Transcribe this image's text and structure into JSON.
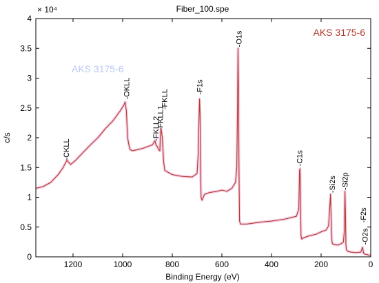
{
  "chart_data": {
    "type": "line",
    "title": "Fiber_100.spe",
    "xlabel": "Binding Energy (eV)",
    "ylabel": "c/s",
    "y_multiplier_label": "× 10⁴",
    "xlim": [
      1350,
      0
    ],
    "ylim": [
      0,
      4
    ],
    "x_ticks": [
      1200,
      1000,
      800,
      600,
      400,
      200,
      0
    ],
    "y_ticks": [
      0,
      0.5,
      1,
      1.5,
      2,
      2.5,
      3,
      3.5,
      4
    ],
    "x_tick_labels": [
      "1200",
      "1000",
      "800",
      "600",
      "400",
      "200",
      "0"
    ],
    "y_tick_labels": [
      "0",
      "0.5",
      "1",
      "1.5",
      "2",
      "2.5",
      "3",
      "3.5",
      "4"
    ],
    "grid": false,
    "legend_position": "top-right",
    "series": [
      {
        "name": "AKS 3175-6",
        "color": "#b03a2e",
        "x": [
          1350,
          1320,
          1290,
          1260,
          1240,
          1230,
          1225,
          1220,
          1210,
          1190,
          1160,
          1130,
          1100,
          1070,
          1040,
          1010,
          995,
          990,
          985,
          980,
          975,
          970,
          960,
          940,
          920,
          900,
          880,
          870,
          865,
          860,
          855,
          850,
          848,
          845,
          840,
          835,
          830,
          800,
          760,
          720,
          700,
          695,
          692,
          690,
          688,
          686,
          684,
          680,
          670,
          650,
          620,
          600,
          580,
          560,
          545,
          540,
          537,
          535,
          533,
          531,
          529,
          525,
          520,
          500,
          450,
          400,
          350,
          300,
          290,
          287,
          285,
          283,
          281,
          278,
          270,
          250,
          220,
          200,
          180,
          170,
          165,
          162,
          160,
          158,
          156,
          154,
          150,
          140,
          130,
          120,
          110,
          106,
          104,
          102,
          100,
          98,
          95,
          90,
          80,
          60,
          40,
          33,
          31,
          29,
          25,
          20,
          15,
          10,
          5,
          0
        ],
        "values": [
          1.15,
          1.18,
          1.25,
          1.38,
          1.5,
          1.58,
          1.62,
          1.6,
          1.55,
          1.62,
          1.75,
          1.88,
          2.0,
          2.15,
          2.28,
          2.45,
          2.55,
          2.6,
          2.45,
          2.0,
          1.88,
          1.8,
          1.78,
          1.8,
          1.82,
          1.85,
          1.88,
          1.95,
          1.87,
          1.85,
          1.8,
          1.78,
          2.05,
          2.15,
          2.0,
          1.6,
          1.45,
          1.38,
          1.35,
          1.34,
          1.4,
          1.75,
          2.4,
          2.65,
          2.4,
          1.5,
          1.0,
          0.95,
          1.05,
          1.08,
          1.1,
          1.12,
          1.1,
          1.15,
          1.25,
          1.5,
          2.5,
          3.5,
          2.8,
          1.5,
          0.6,
          0.55,
          0.55,
          0.55,
          0.58,
          0.6,
          0.63,
          0.68,
          0.8,
          1.45,
          1.48,
          0.9,
          0.35,
          0.3,
          0.32,
          0.35,
          0.38,
          0.42,
          0.45,
          0.52,
          0.85,
          1.05,
          0.7,
          0.4,
          0.25,
          0.22,
          0.21,
          0.2,
          0.2,
          0.22,
          0.25,
          0.45,
          1.1,
          0.75,
          0.2,
          0.12,
          0.1,
          0.09,
          0.08,
          0.07,
          0.08,
          0.16,
          0.12,
          0.06,
          0.05,
          0.04,
          0.04,
          0.03,
          0.03,
          0.03
        ]
      }
    ],
    "annotations": [
      {
        "text": "-CKLL",
        "x": 1228,
        "y": 1.6
      },
      {
        "text": "-OKLL",
        "x": 985,
        "y": 2.62
      },
      {
        "text": "-FKLL2",
        "x": 866,
        "y": 1.92
      },
      {
        "text": "-FKLL1",
        "x": 848,
        "y": 2.1
      },
      {
        "text": "-FKLL",
        "x": 832,
        "y": 2.45
      },
      {
        "text": "-F1s",
        "x": 690,
        "y": 2.7
      },
      {
        "text": "-O1s",
        "x": 532,
        "y": 3.5
      },
      {
        "text": "-C1s",
        "x": 287,
        "y": 1.5
      },
      {
        "text": "-Si2s",
        "x": 156,
        "y": 1.05
      },
      {
        "text": "-Si2p",
        "x": 104,
        "y": 1.1
      },
      {
        "text": "-F2s",
        "x": 30,
        "y": 0.55
      },
      {
        "text": "-O2s",
        "x": 24,
        "y": 0.18
      }
    ],
    "watermark": "AKS 3175-6"
  }
}
